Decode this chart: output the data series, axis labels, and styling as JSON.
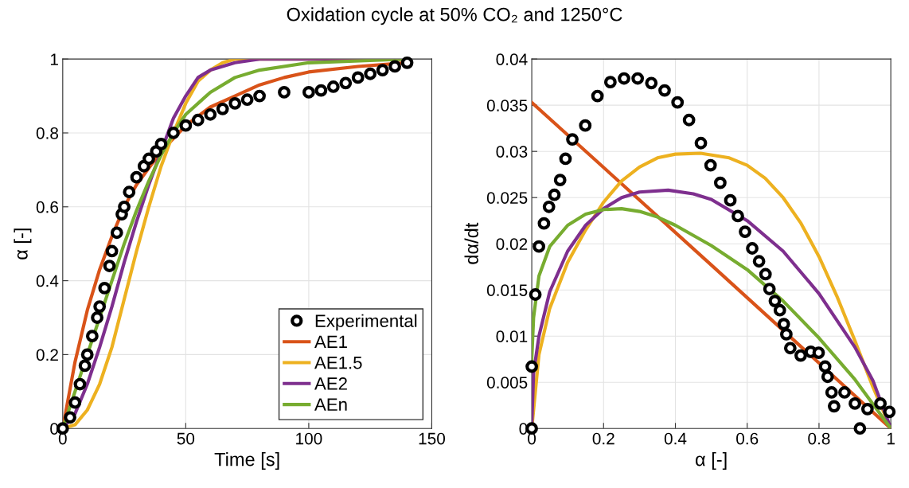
{
  "chart_data": [
    {
      "type": "line",
      "title": "Oxidation cycle at 50% CO₂ and 1250°C",
      "xlabel": "Time [s]",
      "ylabel": "α [-]",
      "xlim": [
        0,
        150
      ],
      "xticks": [
        0,
        50,
        100,
        150
      ],
      "ylim": [
        0,
        1
      ],
      "yticks": [
        0,
        0.2,
        0.4,
        0.6,
        0.8,
        1
      ],
      "grid": true,
      "legend": "bottom right",
      "series": [
        {
          "name": "Experimental",
          "type": "scatter",
          "marker": "circle",
          "color": "#000000",
          "x": [
            0,
            3,
            5,
            7,
            9,
            10,
            12,
            14,
            15,
            17,
            19,
            20,
            22,
            24,
            25,
            27,
            30,
            33,
            35,
            38,
            40,
            45,
            50,
            55,
            60,
            65,
            70,
            75,
            80,
            90,
            100,
            105,
            110,
            115,
            120,
            125,
            130,
            135,
            140
          ],
          "values": [
            0,
            0.03,
            0.07,
            0.12,
            0.17,
            0.2,
            0.25,
            0.3,
            0.33,
            0.38,
            0.44,
            0.48,
            0.53,
            0.58,
            0.6,
            0.64,
            0.68,
            0.71,
            0.73,
            0.75,
            0.77,
            0.8,
            0.82,
            0.835,
            0.85,
            0.865,
            0.88,
            0.89,
            0.9,
            0.91,
            0.91,
            0.915,
            0.925,
            0.935,
            0.95,
            0.96,
            0.97,
            0.98,
            0.99
          ]
        },
        {
          "name": "AE1",
          "color": "#d95319",
          "x": [
            0,
            5,
            10,
            15,
            20,
            25,
            30,
            40,
            50,
            60,
            70,
            80,
            90,
            100,
            120,
            140
          ],
          "values": [
            0,
            0.18,
            0.32,
            0.43,
            0.52,
            0.6,
            0.66,
            0.75,
            0.82,
            0.87,
            0.9,
            0.93,
            0.95,
            0.965,
            0.98,
            0.99
          ]
        },
        {
          "name": "AE1.5",
          "color": "#edb120",
          "x": [
            0,
            5,
            10,
            15,
            20,
            25,
            30,
            35,
            40,
            45,
            50,
            55,
            60,
            65,
            70,
            140
          ],
          "values": [
            0,
            0.01,
            0.05,
            0.12,
            0.22,
            0.35,
            0.48,
            0.6,
            0.71,
            0.8,
            0.88,
            0.94,
            0.97,
            0.99,
            1,
            1
          ]
        },
        {
          "name": "AE2",
          "color": "#7e2f8e",
          "x": [
            0,
            5,
            10,
            15,
            20,
            25,
            30,
            35,
            40,
            45,
            50,
            55,
            60,
            70,
            80,
            140
          ],
          "values": [
            0,
            0.04,
            0.12,
            0.22,
            0.33,
            0.45,
            0.56,
            0.66,
            0.75,
            0.84,
            0.9,
            0.95,
            0.97,
            0.99,
            1,
            1
          ]
        },
        {
          "name": "AEn",
          "color": "#77ac30",
          "x": [
            0,
            5,
            10,
            15,
            20,
            25,
            30,
            35,
            40,
            45,
            50,
            60,
            70,
            80,
            100,
            140
          ],
          "values": [
            0,
            0.1,
            0.2,
            0.3,
            0.4,
            0.5,
            0.59,
            0.67,
            0.74,
            0.8,
            0.85,
            0.91,
            0.95,
            0.97,
            0.99,
            1
          ]
        }
      ]
    },
    {
      "type": "line",
      "xlabel": "α [-]",
      "ylabel": "dα/dt",
      "xlim": [
        0,
        1
      ],
      "xticks": [
        0,
        0.2,
        0.4,
        0.6,
        0.8,
        1
      ],
      "ylim": [
        0,
        0.04
      ],
      "yticks": [
        0,
        0.005,
        0.01,
        0.015,
        0.02,
        0.025,
        0.03,
        0.035,
        0.04
      ],
      "grid": true,
      "series": [
        {
          "type": "scatter",
          "marker": "circle",
          "color": "#000000",
          "x": [
            0,
            0,
            0.01,
            0.02,
            0.034,
            0.048,
            0.063,
            0.079,
            0.094,
            0.113,
            0.149,
            0.183,
            0.219,
            0.257,
            0.295,
            0.333,
            0.37,
            0.406,
            0.438,
            0.471,
            0.498,
            0.525,
            0.553,
            0.574,
            0.594,
            0.614,
            0.633,
            0.651,
            0.662,
            0.677,
            0.691,
            0.702,
            0.709,
            0.72,
            0.749,
            0.777,
            0.799,
            0.817,
            0.824,
            0.835,
            0.842,
            0.871,
            0.9,
            0.914,
            0.935,
            0.971,
            0.996
          ],
          "values": [
            0,
            0.0067,
            0.0145,
            0.0197,
            0.0222,
            0.024,
            0.0253,
            0.0269,
            0.0292,
            0.0313,
            0.0328,
            0.036,
            0.0375,
            0.0379,
            0.0379,
            0.0374,
            0.0366,
            0.0353,
            0.0334,
            0.0309,
            0.0285,
            0.0266,
            0.0247,
            0.023,
            0.0213,
            0.0195,
            0.0181,
            0.0167,
            0.0151,
            0.0138,
            0.0128,
            0.0113,
            0.0102,
            0.0087,
            0.0079,
            0.0083,
            0.0082,
            0.0067,
            0.0056,
            0.0039,
            0.0024,
            0.0039,
            0.0027,
            0,
            0.0021,
            0.0027,
            0.0018
          ]
        },
        {
          "color": "#d95319",
          "x": [
            0,
            0.5,
            1
          ],
          "values": [
            0.0353,
            0.0177,
            0
          ]
        },
        {
          "color": "#edb120",
          "x": [
            0,
            0.02,
            0.05,
            0.1,
            0.15,
            0.2,
            0.25,
            0.3,
            0.35,
            0.4,
            0.47,
            0.55,
            0.6,
            0.65,
            0.7,
            0.75,
            0.8,
            0.85,
            0.9,
            0.95,
            1
          ],
          "values": [
            0,
            0.008,
            0.013,
            0.018,
            0.0215,
            0.0245,
            0.0268,
            0.0283,
            0.0293,
            0.0297,
            0.0298,
            0.0293,
            0.0285,
            0.0271,
            0.025,
            0.0222,
            0.0186,
            0.0143,
            0.0095,
            0.0045,
            0
          ]
        },
        {
          "color": "#7e2f8e",
          "x": [
            0,
            0.005,
            0.02,
            0.05,
            0.1,
            0.15,
            0.2,
            0.25,
            0.3,
            0.38,
            0.45,
            0.5,
            0.6,
            0.7,
            0.8,
            0.9,
            0.95,
            1
          ],
          "values": [
            0.0005,
            0.006,
            0.01,
            0.0148,
            0.0192,
            0.022,
            0.0238,
            0.025,
            0.0256,
            0.0258,
            0.0254,
            0.0248,
            0.0225,
            0.0192,
            0.0146,
            0.0088,
            0.0052,
            0
          ]
        },
        {
          "color": "#77ac30",
          "x": [
            0,
            0.005,
            0.02,
            0.05,
            0.1,
            0.15,
            0.2,
            0.25,
            0.3,
            0.35,
            0.4,
            0.5,
            0.6,
            0.7,
            0.8,
            0.9,
            1
          ],
          "values": [
            0.0075,
            0.012,
            0.0165,
            0.0197,
            0.022,
            0.0232,
            0.0237,
            0.0238,
            0.0235,
            0.0229,
            0.022,
            0.0198,
            0.0172,
            0.0138,
            0.0098,
            0.0053,
            0
          ]
        }
      ]
    }
  ]
}
